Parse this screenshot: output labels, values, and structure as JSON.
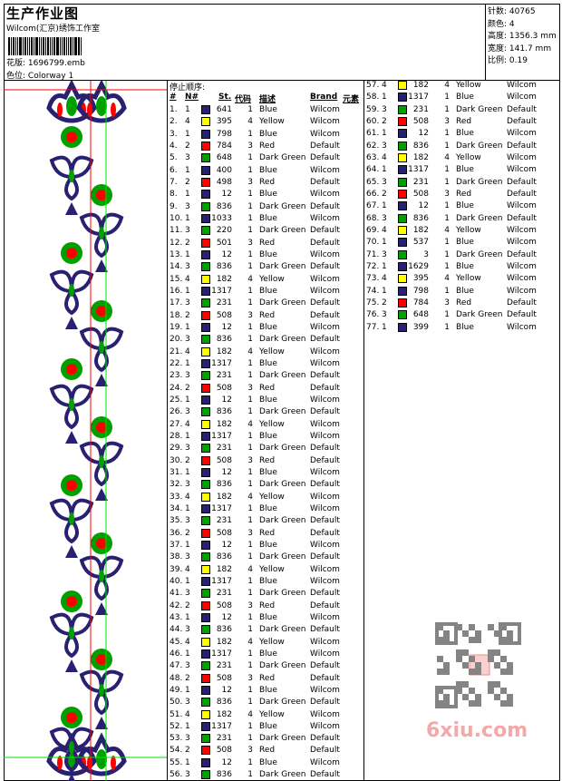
{
  "header": {
    "title": "生产作业图",
    "company": "Wilcom(汇京)绣饰工作室",
    "design_label": "花版:",
    "design_value": "1696799.emb",
    "colorway_label": "色位:",
    "colorway_value": "Colorway 1"
  },
  "info": [
    {
      "label": "针数:",
      "value": "40765"
    },
    {
      "label": "颜色:",
      "value": "4"
    },
    {
      "label": "高度:",
      "value": "1356.3 mm"
    },
    {
      "label": "宽度:",
      "value": "141.7 mm"
    },
    {
      "label": "比例:",
      "value": "0.19"
    }
  ],
  "stop_sequence": {
    "title": "停止顺序:",
    "headers": [
      "#",
      "N#",
      "St.",
      "代码",
      "描述",
      "Brand",
      "元素"
    ]
  },
  "threads": {
    "1": {
      "code": "1",
      "desc": "Blue",
      "brand": "Wilcom",
      "color": "#282070"
    },
    "2": {
      "code": "3",
      "desc": "Red",
      "brand": "Default",
      "color": "#ff0000"
    },
    "3": {
      "code": "1",
      "desc": "Dark Green",
      "brand": "Default",
      "color": "#00a000"
    },
    "4": {
      "code": "4",
      "desc": "Yellow",
      "brand": "Wilcom",
      "color": "#ffff00"
    }
  },
  "rows": [
    [
      1,
      641
    ],
    [
      4,
      395
    ],
    [
      1,
      798
    ],
    [
      2,
      784
    ],
    [
      3,
      648
    ],
    [
      1,
      400
    ],
    [
      2,
      498
    ],
    [
      1,
      12
    ],
    [
      3,
      836
    ],
    [
      1,
      1033
    ],
    [
      3,
      220
    ],
    [
      2,
      501
    ],
    [
      1,
      12
    ],
    [
      3,
      836
    ],
    [
      4,
      182
    ],
    [
      1,
      1317
    ],
    [
      3,
      231
    ],
    [
      2,
      508
    ],
    [
      1,
      12
    ],
    [
      3,
      836
    ],
    [
      4,
      182
    ],
    [
      1,
      1317
    ],
    [
      3,
      231
    ],
    [
      2,
      508
    ],
    [
      1,
      12
    ],
    [
      3,
      836
    ],
    [
      4,
      182
    ],
    [
      1,
      1317
    ],
    [
      3,
      231
    ],
    [
      2,
      508
    ],
    [
      1,
      12
    ],
    [
      3,
      836
    ],
    [
      4,
      182
    ],
    [
      1,
      1317
    ],
    [
      3,
      231
    ],
    [
      2,
      508
    ],
    [
      1,
      12
    ],
    [
      3,
      836
    ],
    [
      4,
      182
    ],
    [
      1,
      1317
    ],
    [
      3,
      231
    ],
    [
      2,
      508
    ],
    [
      1,
      12
    ],
    [
      3,
      836
    ],
    [
      4,
      182
    ],
    [
      1,
      1317
    ],
    [
      3,
      231
    ],
    [
      2,
      508
    ],
    [
      1,
      12
    ],
    [
      3,
      836
    ],
    [
      4,
      182
    ],
    [
      1,
      1317
    ],
    [
      3,
      231
    ],
    [
      2,
      508
    ],
    [
      1,
      12
    ],
    [
      3,
      836
    ],
    [
      4,
      182
    ],
    [
      1,
      1317
    ],
    [
      3,
      231
    ],
    [
      2,
      508
    ],
    [
      1,
      12
    ],
    [
      3,
      836
    ],
    [
      4,
      182
    ],
    [
      1,
      1317
    ],
    [
      3,
      231
    ],
    [
      2,
      508
    ],
    [
      1,
      12
    ],
    [
      3,
      836
    ],
    [
      4,
      182
    ],
    [
      1,
      537
    ],
    [
      3,
      3
    ],
    [
      1,
      1629
    ],
    [
      4,
      395
    ],
    [
      1,
      798
    ],
    [
      2,
      784
    ],
    [
      3,
      648
    ],
    [
      1,
      399
    ]
  ],
  "watermark": {
    "text": "6xiu.com",
    "seal": "秋图 搜藏"
  }
}
